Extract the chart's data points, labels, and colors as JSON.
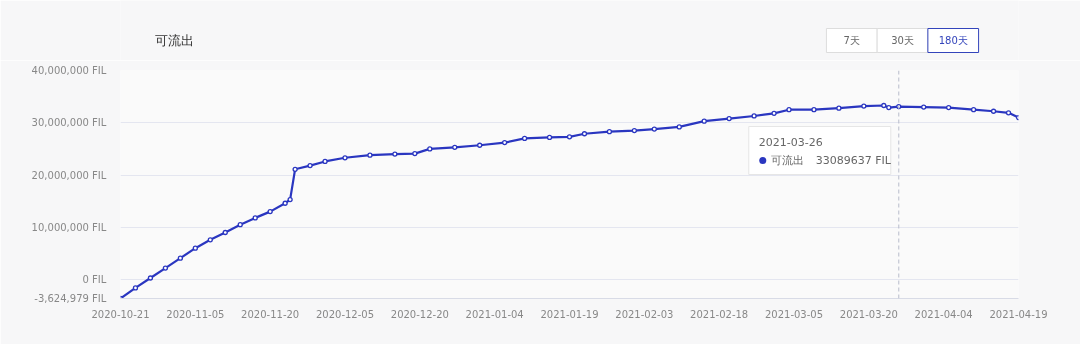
{
  "chart_data": {
    "type": "line",
    "title": "可流出",
    "x": [
      "2020-10-21",
      "2020-10-24",
      "2020-10-27",
      "2020-10-30",
      "2020-11-02",
      "2020-11-05",
      "2020-11-08",
      "2020-11-11",
      "2020-11-14",
      "2020-11-17",
      "2020-11-20",
      "2020-11-23",
      "2020-11-24",
      "2020-11-25",
      "2020-11-28",
      "2020-12-01",
      "2020-12-05",
      "2020-12-10",
      "2020-12-15",
      "2020-12-19",
      "2020-12-22",
      "2020-12-27",
      "2021-01-01",
      "2021-01-06",
      "2021-01-10",
      "2021-01-15",
      "2021-01-19",
      "2021-01-22",
      "2021-01-27",
      "2021-02-01",
      "2021-02-05",
      "2021-02-10",
      "2021-02-15",
      "2021-02-20",
      "2021-02-25",
      "2021-03-01",
      "2021-03-04",
      "2021-03-09",
      "2021-03-14",
      "2021-03-19",
      "2021-03-23",
      "2021-03-24",
      "2021-03-26",
      "2021-03-31",
      "2021-04-05",
      "2021-04-10",
      "2021-04-14",
      "2021-04-17",
      "2021-04-19"
    ],
    "series": [
      {
        "name": "可流出",
        "color": "#2a36c0",
        "values": [
          -3624979,
          -1600000,
          300000,
          2200000,
          4100000,
          6000000,
          7600000,
          9000000,
          10500000,
          11800000,
          13000000,
          14600000,
          15300000,
          21100000,
          21800000,
          22600000,
          23300000,
          23800000,
          24000000,
          24100000,
          25000000,
          25300000,
          25700000,
          26200000,
          27000000,
          27200000,
          27300000,
          27900000,
          28300000,
          28500000,
          28800000,
          29200000,
          30300000,
          30800000,
          31300000,
          31800000,
          32500000,
          32500000,
          32800000,
          33200000,
          33300000,
          32900000,
          33089637,
          33000000,
          32900000,
          32500000,
          32200000,
          31900000,
          31000000
        ]
      }
    ],
    "xlim": [
      "2020-10-21",
      "2021-04-19"
    ],
    "xticks": [
      "2020-10-21",
      "2020-11-05",
      "2020-11-20",
      "2020-12-05",
      "2020-12-20",
      "2021-01-04",
      "2021-01-19",
      "2021-02-03",
      "2021-02-18",
      "2021-03-05",
      "2021-03-20",
      "2021-04-04",
      "2021-04-19"
    ],
    "ylim": [
      -3624979,
      40000000
    ],
    "yticks": [
      {
        "value": -3624979,
        "label": "-3,624,979  FIL"
      },
      {
        "value": 0,
        "label": "0  FIL"
      },
      {
        "value": 10000000,
        "label": "10,000,000  FIL"
      },
      {
        "value": 20000000,
        "label": "20,000,000  FIL"
      },
      {
        "value": 30000000,
        "label": "30,000,000  FIL"
      },
      {
        "value": 40000000,
        "label": "40,000,000  FIL"
      }
    ],
    "grid": "y",
    "marker": "circle",
    "legend": "right",
    "line_style": "solid",
    "ref_lines": [
      {
        "axis": "x",
        "value": "2021-03-26",
        "label": null,
        "color": "#b8bccb",
        "line_style": "dashed"
      }
    ],
    "annotations": [
      "7天",
      "30天",
      "180天",
      "2021-03-26",
      "33089637 FIL"
    ]
  }
}
